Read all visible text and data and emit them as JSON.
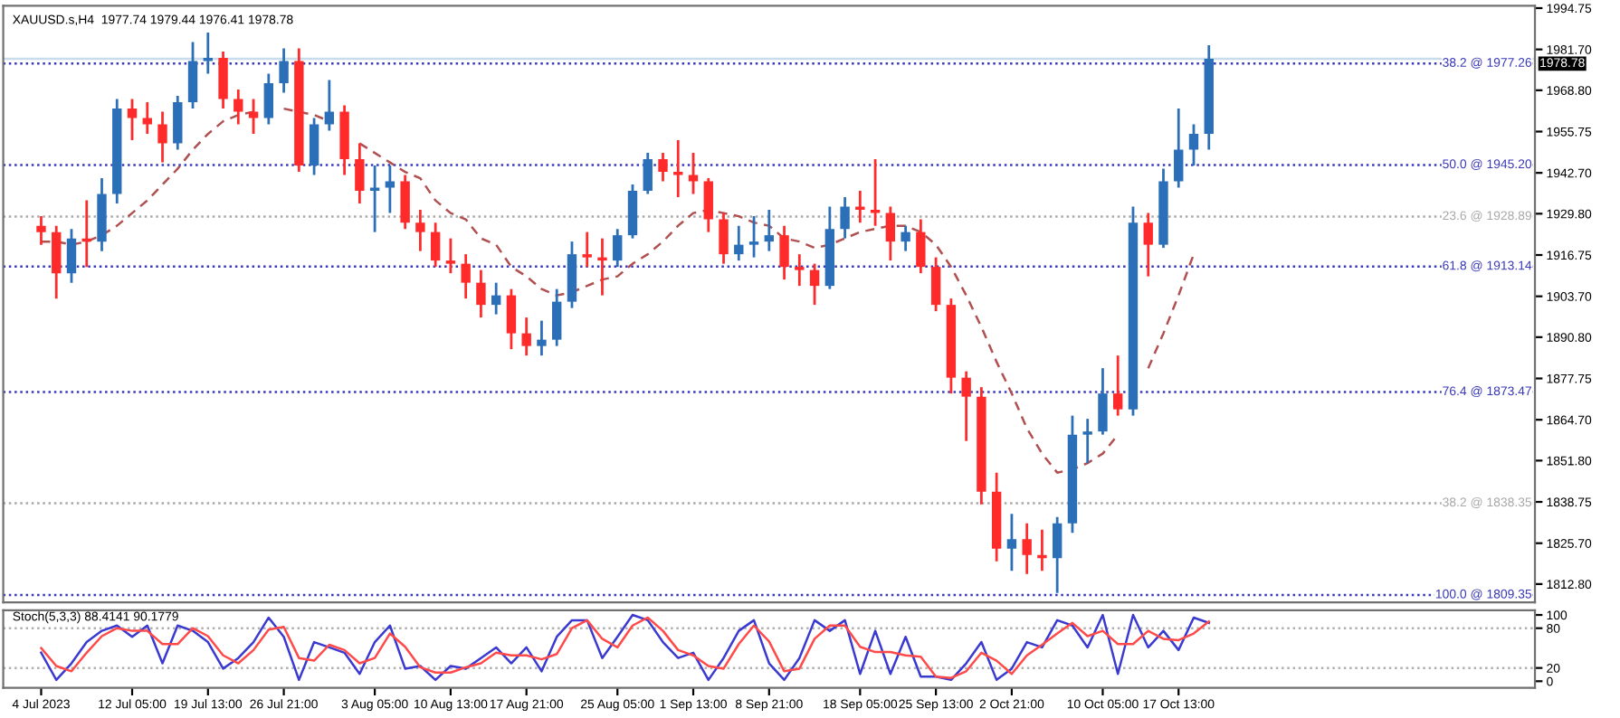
{
  "chart_data": [
    {
      "type": "candlestick",
      "title": "XAUUSD.s,H4  1977.74 1979.44 1976.41 1978.78",
      "tick_labels": "y",
      "categories": [
        null,
        null,
        null,
        null,
        null,
        null,
        null,
        null,
        null,
        null,
        null,
        null,
        null,
        null,
        null,
        null,
        null,
        null,
        null,
        null,
        null,
        null,
        null,
        null,
        null,
        null,
        null,
        null,
        null,
        null,
        null,
        null,
        null,
        null,
        null,
        null,
        null,
        null,
        null,
        null,
        null,
        null,
        null,
        null,
        null,
        null,
        null,
        null,
        null,
        null,
        null,
        null,
        null,
        null,
        null,
        null,
        null,
        null,
        null,
        null,
        null,
        null,
        null,
        null,
        null,
        null,
        null,
        null,
        null,
        null,
        null,
        null,
        null,
        null,
        null,
        null,
        null,
        null,
        null,
        null,
        null,
        null,
        null,
        null,
        null,
        null,
        null,
        null,
        null,
        null,
        null,
        null,
        null,
        null,
        null,
        null,
        null,
        null,
        null,
        null,
        null
      ],
      "ohlc": [
        null,
        null,
        [
          1926,
          1929,
          1920,
          1924
        ],
        [
          1924,
          1926,
          1903,
          1911
        ],
        [
          1911,
          1925,
          1908,
          1922
        ],
        [
          1922,
          1934,
          1913,
          1921
        ],
        [
          1921,
          1941,
          1918,
          1936
        ],
        [
          1936,
          1966,
          1933,
          1963
        ],
        [
          1963,
          1966,
          1953,
          1960
        ],
        [
          1960,
          1965,
          1955,
          1958
        ],
        [
          1958,
          1962,
          1946,
          1952
        ],
        [
          1952,
          1967,
          1950,
          1965
        ],
        [
          1965,
          1984,
          1963,
          1978
        ],
        [
          1978,
          1987,
          1974,
          1979
        ],
        [
          1979,
          1981,
          1963,
          1966
        ],
        [
          1966,
          1969,
          1958,
          1962
        ],
        [
          1962,
          1966,
          1955,
          1960
        ],
        [
          1960,
          1974,
          1958,
          1971
        ],
        [
          1971,
          1982,
          1968,
          1978
        ],
        [
          1978,
          1982,
          1943,
          1945
        ],
        [
          1945,
          1960,
          1942,
          1958
        ],
        [
          1958,
          1972,
          1956,
          1962
        ],
        [
          1962,
          1964,
          1942,
          1947
        ],
        [
          1947,
          1952,
          1933,
          1937
        ],
        [
          1937,
          1945,
          1924,
          1938
        ],
        [
          1938,
          1945,
          1930,
          1940
        ],
        [
          1940,
          1942,
          1925,
          1927
        ],
        [
          1927,
          1931,
          1918,
          1924
        ],
        [
          1924,
          1927,
          1913,
          1915
        ],
        [
          1915,
          1922,
          1911,
          1914
        ],
        [
          1914,
          1917,
          1903,
          1908
        ],
        [
          1908,
          1912,
          1897,
          1901
        ],
        [
          1901,
          1908,
          1898,
          1904
        ],
        [
          1904,
          1906,
          1887,
          1892
        ],
        [
          1892,
          1897,
          1885,
          1888
        ],
        [
          1888,
          1896,
          1885,
          1890
        ],
        [
          1890,
          1906,
          1888,
          1902
        ],
        [
          1902,
          1921,
          1900,
          1917
        ],
        [
          1917,
          1924,
          1913,
          1916
        ],
        [
          1916,
          1922,
          1904,
          1915
        ],
        [
          1915,
          1925,
          1913,
          1923
        ],
        [
          1923,
          1939,
          1922,
          1937
        ],
        [
          1937,
          1949,
          1936,
          1947
        ],
        [
          1947,
          1949,
          1940,
          1943
        ],
        [
          1943,
          1953,
          1935,
          1942
        ],
        [
          1942,
          1949,
          1936,
          1940
        ],
        [
          1940,
          1941,
          1924,
          1928
        ],
        [
          1928,
          1930,
          1914,
          1917
        ],
        [
          1917,
          1926,
          1915,
          1920
        ],
        [
          1920,
          1929,
          1916,
          1921
        ],
        [
          1921,
          1931,
          1918,
          1923
        ],
        [
          1923,
          1926,
          1909,
          1913
        ],
        [
          1913,
          1917,
          1907,
          1912
        ],
        [
          1912,
          1914,
          1901,
          1907
        ],
        [
          1907,
          1932,
          1906,
          1925
        ],
        [
          1925,
          1935,
          1922,
          1932
        ],
        [
          1932,
          1937,
          1927,
          1931
        ],
        [
          1931,
          1947,
          1926,
          1930
        ],
        [
          1930,
          1932,
          1915,
          1921
        ],
        [
          1921,
          1926,
          1918,
          1924
        ],
        [
          1924,
          1928,
          1911,
          1913
        ],
        [
          1913,
          1916,
          1899,
          1901
        ],
        [
          1901,
          1903,
          1873,
          1878
        ],
        [
          1878,
          1880,
          1858,
          1872
        ],
        [
          1872,
          1875,
          1838,
          1842
        ],
        [
          1842,
          1848,
          1820,
          1824
        ],
        [
          1824,
          1835,
          1817,
          1827
        ],
        [
          1827,
          1832,
          1816,
          1822
        ],
        [
          1822,
          1830,
          1817,
          1821
        ],
        [
          1821,
          1834,
          1810,
          1832
        ],
        [
          1832,
          1866,
          1829,
          1860
        ],
        [
          1860,
          1865,
          1851,
          1861
        ],
        [
          1861,
          1881,
          1860,
          1873
        ],
        [
          1873,
          1885,
          1866,
          1868
        ],
        [
          1868,
          1932,
          1866,
          1927
        ],
        [
          1927,
          1930,
          1910,
          1920
        ],
        [
          1920,
          1944,
          1919,
          1940
        ],
        [
          1940,
          1963,
          1938,
          1950
        ],
        [
          1950,
          1958,
          1945,
          1955
        ],
        [
          1955,
          1983,
          1950,
          1978.78
        ],
        null,
        null,
        null,
        null,
        null,
        null,
        null,
        null,
        null,
        null,
        null,
        null,
        null,
        null,
        null,
        null,
        null,
        null,
        null,
        null,
        null
      ],
      "colors": [
        null,
        null,
        "#ff2a2a",
        "#ff2a2a",
        "#2a6fb8",
        "#ff2a2a",
        "#2a6fb8",
        "#2a6fb8",
        "#ff2a2a",
        "#ff2a2a",
        "#ff2a2a",
        "#2a6fb8",
        "#2a6fb8",
        "#2a6fb8",
        "#ff2a2a",
        "#ff2a2a",
        "#ff2a2a",
        "#2a6fb8",
        "#2a6fb8",
        "#ff2a2a",
        "#2a6fb8",
        "#2a6fb8",
        "#ff2a2a",
        "#ff2a2a",
        "#2a6fb8",
        "#2a6fb8",
        "#ff2a2a",
        "#ff2a2a",
        "#ff2a2a",
        "#ff2a2a",
        "#ff2a2a",
        "#ff2a2a",
        "#2a6fb8",
        "#ff2a2a",
        "#ff2a2a",
        "#2a6fb8",
        "#2a6fb8",
        "#2a6fb8",
        "#ff2a2a",
        "#ff2a2a",
        "#2a6fb8",
        "#2a6fb8",
        "#2a6fb8",
        "#ff2a2a",
        "#ff2a2a",
        "#ff2a2a",
        "#ff2a2a",
        "#ff2a2a",
        "#2a6fb8",
        "#2a6fb8",
        "#2a6fb8",
        "#ff2a2a",
        "#ff2a2a",
        "#ff2a2a",
        "#2a6fb8",
        "#2a6fb8",
        "#ff2a2a",
        "#ff2a2a",
        "#ff2a2a",
        "#2a6fb8",
        "#ff2a2a",
        "#ff2a2a",
        "#ff2a2a",
        "#ff2a2a",
        "#ff2a2a",
        "#ff2a2a",
        "#2a6fb8",
        "#ff2a2a",
        "#ff2a2a",
        "#2a6fb8",
        "#2a6fb8",
        "#2a6fb8",
        "#2a6fb8",
        "#ff2a2a",
        "#2a6fb8",
        "#ff2a2a",
        "#2a6fb8",
        "#2a6fb8",
        "#2a6fb8",
        "#2a6fb8",
        null,
        null,
        null,
        null,
        null,
        null,
        null,
        null,
        null,
        null,
        null,
        null,
        null,
        null,
        null,
        null,
        null,
        null,
        null,
        null,
        null
      ],
      "series": [
        {
          "type": "line",
          "color": "#b05050",
          "line_style": "dashed",
          "values": [
            null,
            null,
            1921,
            1921,
            1920,
            1921,
            1923,
            1926,
            1930,
            1934,
            1939,
            1944,
            1950,
            1955,
            1959,
            1961,
            1962,
            null,
            1963,
            1962,
            1961,
            1959,
            null,
            1952,
            1949,
            1946,
            1943,
            1941,
            1934,
            1930,
            1928,
            1922,
            1920,
            1913,
            1910,
            1906,
            1904,
            1905,
            1907,
            1909,
            1910,
            1914,
            1917,
            1921,
            1926,
            1930,
            1931,
            1930,
            1929,
            1927,
            1926,
            1922,
            1921,
            1919,
            1920,
            1922,
            1924,
            1925,
            1926,
            1926,
            1924,
            1920,
            1913,
            1904,
            1894,
            1883,
            1873,
            1862,
            1854,
            1848,
            1849,
            1851,
            1854,
            1860,
            null,
            1881,
            1892,
            1904,
            1917,
            null,
            null,
            null,
            null,
            null,
            null,
            null,
            null,
            null,
            null,
            null,
            null,
            null,
            null,
            null,
            null,
            null,
            null,
            null,
            null,
            null,
            null
          ]
        }
      ],
      "ylim": [
        1807,
        1995.5
      ],
      "yticks": [
        {
          "value": 1812.8,
          "label": "1812.80"
        },
        {
          "value": 1825.7,
          "label": "1825.70"
        },
        1838.75,
        {
          "value": 1851.8,
          "label": "1851.80"
        },
        {
          "value": 1864.7,
          "label": "1864.70"
        },
        1877.75,
        {
          "value": 1890.8,
          "label": "1890.80"
        },
        {
          "value": 1903.7,
          "label": "1903.70"
        },
        1916.75,
        {
          "value": 1929.8,
          "label": "1929.80"
        },
        {
          "value": 1942.7,
          "label": "1942.70"
        },
        1955.75,
        {
          "value": 1968.8,
          "label": "1968.80"
        },
        {
          "value": 1981.7,
          "label": "1981.70"
        },
        1994.75
      ],
      "ref_lines": [
        {
          "axis": "y",
          "value": 1977.26,
          "label": "38.2 @ 1977.26",
          "color": "#3838b8",
          "line_style": "dotted"
        },
        {
          "axis": "y",
          "value": 1945.2,
          "label": "50.0 @ 1945.20",
          "color": "#3838b8",
          "line_style": "dotted"
        },
        {
          "axis": "y",
          "value": 1928.89,
          "label": "23.6 @ 1928.89",
          "color": "#a8a8a8",
          "line_style": "dotted"
        },
        {
          "axis": "y",
          "value": 1913.14,
          "label": "61.8 @ 1913.14",
          "color": "#3838b8",
          "line_style": "dotted"
        },
        {
          "axis": "y",
          "value": 1873.47,
          "label": "76.4 @ 1873.47",
          "color": "#3838b8",
          "line_style": "dotted"
        },
        {
          "axis": "y",
          "value": 1838.35,
          "label": "38.2 @ 1838.35",
          "color": "#a8a8a8",
          "line_style": "dotted"
        },
        {
          "axis": "y",
          "value": 1809.35,
          "label": "100.0 @ 1809.35",
          "color": "#3838b8",
          "line_style": "dotted"
        },
        {
          "axis": "y",
          "value": 1978.78,
          "label": "1978.78",
          "color": "#c8dcec",
          "line_style": "solid"
        }
      ]
    },
    {
      "type": "line",
      "title": "Stoch(5,3,3) 88.4141 90.1779",
      "categories": [
        null,
        null,
        "4 Jul 2023",
        null,
        null,
        null,
        null,
        null,
        "12 Jul 05:00",
        null,
        null,
        null,
        null,
        "19 Jul 13:00",
        null,
        null,
        null,
        null,
        "26 Jul 21:00",
        null,
        null,
        null,
        null,
        null,
        "3 Aug 05:00",
        null,
        null,
        null,
        null,
        "10 Aug 13:00",
        null,
        null,
        null,
        null,
        "17 Aug 21:00",
        null,
        null,
        null,
        null,
        null,
        "25 Aug 05:00",
        null,
        null,
        null,
        null,
        "1 Sep 13:00",
        null,
        null,
        null,
        null,
        "8 Sep 21:00",
        null,
        null,
        null,
        null,
        null,
        "18 Sep 05:00",
        null,
        null,
        null,
        null,
        "25 Sep 13:00",
        null,
        null,
        null,
        null,
        "2 Oct 21:00",
        null,
        null,
        null,
        null,
        null,
        "10 Oct 05:00",
        null,
        null,
        null,
        null,
        "17 Oct 13:00",
        null,
        null,
        null,
        null,
        null,
        null,
        null,
        null,
        null,
        null,
        null,
        null,
        null,
        null,
        null,
        null,
        null,
        null,
        null,
        null,
        null,
        null,
        null
      ],
      "series": [
        {
          "color": "#3a3ad0",
          "values": [
            null,
            null,
            43,
            2,
            27,
            59,
            76,
            84,
            67,
            84,
            27,
            84,
            76,
            59,
            19,
            35,
            59,
            96,
            67,
            2,
            59,
            51,
            43,
            11,
            59,
            84,
            19,
            23,
            2,
            23,
            19,
            35,
            51,
            27,
            51,
            15,
            67,
            92,
            92,
            35,
            67,
            100,
            92,
            59,
            35,
            43,
            2,
            35,
            76,
            92,
            27,
            2,
            35,
            92,
            76,
            92,
            11,
            76,
            11,
            67,
            7,
            7,
            2,
            27,
            59,
            2,
            19,
            59,
            51,
            92,
            84,
            51,
            100,
            11,
            100,
            51,
            76,
            47,
            96,
            88,
            null,
            null,
            null,
            null,
            null,
            null,
            null,
            null,
            null,
            null,
            null,
            null,
            null,
            null,
            null,
            null,
            null,
            null,
            null,
            null,
            null
          ]
        },
        {
          "color": "#ff4a4a",
          "values": [
            null,
            null,
            50,
            23,
            15,
            43,
            68,
            80,
            76,
            76,
            56,
            56,
            80,
            68,
            39,
            27,
            47,
            78,
            82,
            35,
            31,
            55,
            47,
            27,
            35,
            72,
            52,
            21,
            13,
            13,
            21,
            27,
            43,
            39,
            39,
            33,
            41,
            80,
            92,
            64,
            51,
            84,
            96,
            76,
            47,
            39,
            23,
            19,
            56,
            84,
            60,
            15,
            19,
            64,
            84,
            84,
            52,
            44,
            44,
            39,
            37,
            7,
            5,
            15,
            43,
            31,
            11,
            39,
            55,
            72,
            88,
            68,
            76,
            56,
            56,
            76,
            64,
            62,
            72,
            90,
            null,
            null,
            null,
            null,
            null,
            null,
            null,
            null,
            null,
            null,
            null,
            null,
            null,
            null,
            null,
            null,
            null,
            null,
            null,
            null,
            null
          ]
        }
      ],
      "line_style": "solid",
      "marker": "none",
      "ylim": [
        -10,
        107
      ],
      "yticks": [
        0,
        20,
        80,
        100
      ],
      "ref_lines": [
        {
          "axis": "y",
          "value": 80,
          "color": "#b0b0b0",
          "line_style": "dotted"
        },
        {
          "axis": "y",
          "value": 20,
          "color": "#b0b0b0",
          "line_style": "dotted"
        }
      ]
    }
  ]
}
